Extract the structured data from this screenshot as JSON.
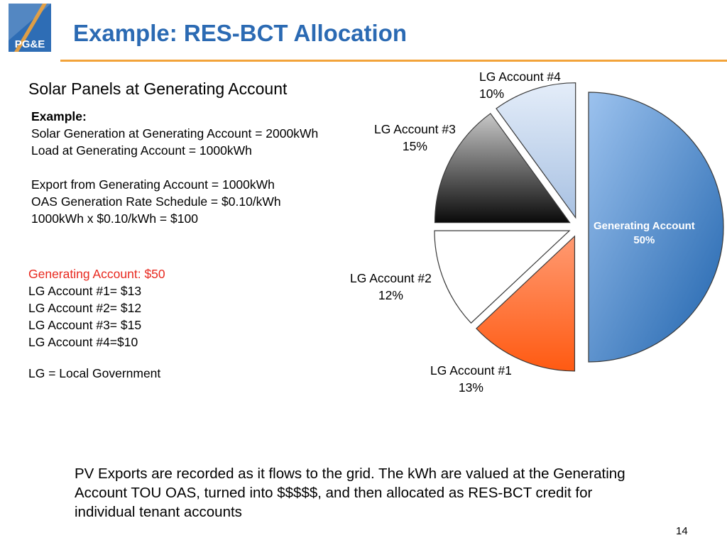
{
  "header": {
    "logo_text": "PG&E",
    "title": "Example: RES-BCT Allocation"
  },
  "content": {
    "subtitle": "Solar Panels at Generating Account",
    "example_heading": "Example:",
    "example_lines": [
      "Solar Generation at Generating Account = 2000kWh",
      "Load at Generating Account = 1000kWh",
      "Export from Generating Account = 1000kWh",
      "OAS Generation Rate Schedule = $0.10/kWh",
      "1000kWh x $0.10/kWh = $100"
    ],
    "allocation_lines": [
      "Generating Account: $50",
      "LG Account #1= $13",
      "LG Account #2= $12",
      "LG Account #3= $15",
      "LG Account #4=$10"
    ],
    "lg_definition": "LG = Local Government",
    "footer_text": "PV Exports are recorded as it flows to the grid. The kWh are valued at the Generating Account TOU OAS, turned into $$$$$, and then allocated as RES-BCT credit for individual tenant accounts",
    "page_number": "14"
  },
  "chart_data": {
    "type": "pie",
    "title": "",
    "slices": [
      {
        "label": "Generating Account",
        "value": 50,
        "value_label": "50%",
        "color": "#5a94d6"
      },
      {
        "label": "LG Account #1",
        "value": 13,
        "value_label": "13%",
        "color": "#ff6a2e"
      },
      {
        "label": "LG Account #2",
        "value": 12,
        "value_label": "12%",
        "color": "#ffffff"
      },
      {
        "label": "LG Account #3",
        "value": 15,
        "value_label": "15%",
        "color": "#7a7a7a"
      },
      {
        "label": "LG Account #4",
        "value": 10,
        "value_label": "10%",
        "color": "#c6d8ef"
      }
    ],
    "exploded": true
  }
}
